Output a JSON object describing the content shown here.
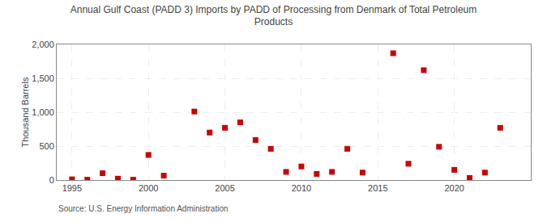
{
  "chart_data": {
    "type": "scatter",
    "title": "Annual Gulf Coast (PADD 3) Imports by PADD of Processing from Denmark of Total Petroleum\nProducts",
    "ylabel": "Thousand Barrels",
    "annotations": [
      "Source: U.S. Energy Information Administration"
    ],
    "x": [
      1995,
      1996,
      1997,
      1998,
      1999,
      2000,
      2001,
      2003,
      2004,
      2005,
      2006,
      2007,
      2008,
      2009,
      2010,
      2011,
      2012,
      2013,
      2014,
      2016,
      2017,
      2018,
      2019,
      2020,
      2021,
      2022,
      2023
    ],
    "values": [
      10,
      5,
      100,
      20,
      5,
      370,
      65,
      1010,
      700,
      770,
      850,
      590,
      460,
      120,
      200,
      90,
      120,
      460,
      110,
      1870,
      240,
      1620,
      490,
      150,
      30,
      110,
      770
    ],
    "color": "#cc0000",
    "marker": "square",
    "xlim": [
      1994,
      2025
    ],
    "xticks": [
      1995,
      2000,
      2005,
      2010,
      2015,
      2020
    ],
    "ylim": [
      0,
      2000
    ],
    "yticks": [
      0,
      500,
      {
        "value": 1000,
        "label": "1,000"
      },
      {
        "value": 1500,
        "label": "1,500"
      },
      {
        "value": 2000,
        "label": "2,000"
      }
    ],
    "grid": true
  }
}
